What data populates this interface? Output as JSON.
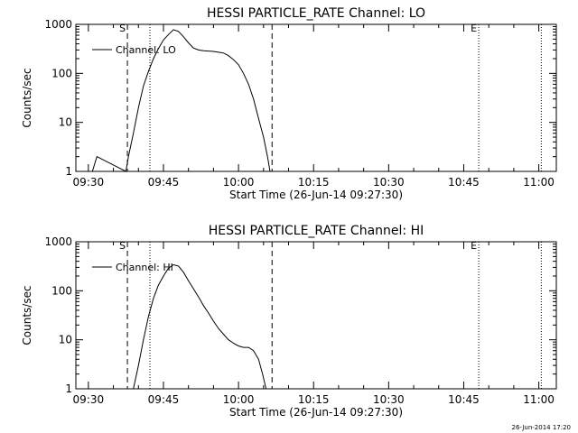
{
  "footer": {
    "timestamp": "26-Jun-2014 17:20"
  },
  "chart_data": [
    {
      "type": "line",
      "title": "HESSI PARTICLE_RATE Channel: LO",
      "xlabel": "Start Time (26-Jun-14 09:27:30)",
      "ylabel": "Counts/sec",
      "yscale": "log",
      "ylim": [
        1,
        1000
      ],
      "xlim_minutes": [
        0,
        96
      ],
      "x_tick_labels": [
        "09:30",
        "09:45",
        "10:00",
        "10:15",
        "10:30",
        "10:45",
        "11:00"
      ],
      "x_tick_minutes": [
        2.5,
        17.5,
        32.5,
        47.5,
        62.5,
        77.5,
        92.5
      ],
      "y_tick_labels": [
        "1",
        "10",
        "100",
        "1000"
      ],
      "y_tick_values": [
        1,
        10,
        100,
        1000
      ],
      "legend": {
        "label": "Channel: LO",
        "placement": "top-left"
      },
      "markers": [
        {
          "label": "S",
          "minute": 10.3,
          "style": "dashed"
        },
        {
          "label": "",
          "minute": 14.8,
          "style": "dotted"
        },
        {
          "label": "",
          "minute": 39.2,
          "style": "dashed"
        },
        {
          "label": "E",
          "minute": 80.5,
          "style": "dotted"
        },
        {
          "label": "",
          "minute": 93.0,
          "style": "dotted"
        }
      ],
      "series": [
        {
          "name": "Channel: LO",
          "x": [
            0,
            3.3,
            4.2,
            10.0,
            10.5,
            11.5,
            12.5,
            13.5,
            14.5,
            15.5,
            16.5,
            17.5,
            18.5,
            19.5,
            20.5,
            21.5,
            22.5,
            23.5,
            24.5,
            25.5,
            26.5,
            27.5,
            28.5,
            29.5,
            30.5,
            31.5,
            32.5,
            33.5,
            34.5,
            35.5,
            36.5,
            37.5,
            38.3,
            38.8
          ],
          "y": [
            1,
            1,
            2,
            1,
            2,
            6,
            20,
            55,
            110,
            200,
            320,
            480,
            620,
            780,
            720,
            560,
            420,
            330,
            300,
            290,
            285,
            280,
            270,
            260,
            230,
            190,
            150,
            100,
            60,
            30,
            12,
            5,
            2,
            1
          ]
        }
      ]
    },
    {
      "type": "line",
      "title": "HESSI PARTICLE_RATE Channel: HI",
      "xlabel": "Start Time (26-Jun-14 09:27:30)",
      "ylabel": "Counts/sec",
      "yscale": "log",
      "ylim": [
        1,
        1000
      ],
      "xlim_minutes": [
        0,
        96
      ],
      "x_tick_labels": [
        "09:30",
        "09:45",
        "10:00",
        "10:15",
        "10:30",
        "10:45",
        "11:00"
      ],
      "x_tick_minutes": [
        2.5,
        17.5,
        32.5,
        47.5,
        62.5,
        77.5,
        92.5
      ],
      "y_tick_labels": [
        "1",
        "10",
        "100",
        "1000"
      ],
      "y_tick_values": [
        1,
        10,
        100,
        1000
      ],
      "legend": {
        "label": "Channel: HI",
        "placement": "top-left"
      },
      "markers": [
        {
          "label": "S",
          "minute": 10.3,
          "style": "dashed"
        },
        {
          "label": "",
          "minute": 14.8,
          "style": "dotted"
        },
        {
          "label": "",
          "minute": 39.2,
          "style": "dashed"
        },
        {
          "label": "E",
          "minute": 80.5,
          "style": "dotted"
        },
        {
          "label": "",
          "minute": 93.0,
          "style": "dotted"
        }
      ],
      "series": [
        {
          "name": "Channel: HI",
          "x": [
            11.5,
            12.5,
            13.5,
            14.5,
            15.5,
            16.5,
            17.5,
            18.5,
            19.5,
            20.5,
            21.5,
            22.5,
            23.5,
            24.5,
            25.5,
            26.5,
            27.5,
            28.5,
            29.5,
            30.5,
            31.5,
            32.5,
            33.5,
            34.5,
            35.5,
            36.5,
            37.3,
            38.0
          ],
          "y": [
            1,
            3,
            10,
            30,
            70,
            130,
            200,
            290,
            340,
            320,
            240,
            160,
            110,
            75,
            50,
            35,
            24,
            17,
            13,
            10,
            8.5,
            7.5,
            7,
            7,
            6,
            4,
            2,
            1
          ]
        }
      ]
    }
  ]
}
